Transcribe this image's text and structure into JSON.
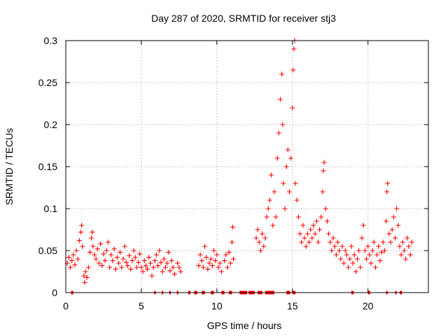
{
  "colors": {
    "series": "#ff0000",
    "grid": "#a0a0a0",
    "axis": "#000000"
  },
  "chart_data": {
    "type": "scatter",
    "title": "Day 287 of 2020, SRMTID for receiver stj3",
    "xlabel": "GPS time / hours",
    "ylabel": "SRMTID / TECUs",
    "xlim": [
      0,
      24
    ],
    "ylim": [
      0,
      0.3
    ],
    "x_ticks": [
      0,
      5,
      10,
      15,
      20
    ],
    "x_tick_labels": [
      "0",
      "5",
      "10",
      "15",
      "20"
    ],
    "y_ticks": [
      0,
      0.05,
      0.1,
      0.15,
      0.2,
      0.25,
      0.3
    ],
    "y_tick_labels": [
      "0",
      "0.05",
      "0.1",
      "0.15",
      "0.2",
      "0.25",
      "0.3"
    ],
    "grid": true,
    "marker": "+",
    "series": [
      {
        "name": "stj3",
        "points": [
          [
            0.1,
            0.035
          ],
          [
            0.2,
            0.042
          ],
          [
            0.3,
            0.03
          ],
          [
            0.4,
            0.038
          ],
          [
            0.5,
            0.045
          ],
          [
            0.6,
            0.033
          ],
          [
            0.7,
            0.05
          ],
          [
            0.8,
            0.04
          ],
          [
            0.9,
            0.062
          ],
          [
            1.0,
            0.072
          ],
          [
            1.05,
            0.08
          ],
          [
            1.1,
            0.055
          ],
          [
            1.2,
            0.02
          ],
          [
            1.25,
            0.012
          ],
          [
            1.3,
            0.025
          ],
          [
            1.4,
            0.018
          ],
          [
            1.5,
            0.03
          ],
          [
            1.6,
            0.048
          ],
          [
            1.7,
            0.065
          ],
          [
            1.75,
            0.072
          ],
          [
            1.8,
            0.055
          ],
          [
            1.9,
            0.045
          ],
          [
            2.0,
            0.04
          ],
          [
            2.1,
            0.052
          ],
          [
            2.2,
            0.035
          ],
          [
            2.3,
            0.058
          ],
          [
            2.4,
            0.032
          ],
          [
            2.5,
            0.046
          ],
          [
            2.6,
            0.038
          ],
          [
            2.7,
            0.05
          ],
          [
            2.8,
            0.06
          ],
          [
            2.9,
            0.03
          ],
          [
            3.0,
            0.045
          ],
          [
            3.1,
            0.038
          ],
          [
            3.2,
            0.052
          ],
          [
            3.3,
            0.028
          ],
          [
            3.4,
            0.042
          ],
          [
            3.5,
            0.035
          ],
          [
            3.6,
            0.048
          ],
          [
            3.7,
            0.03
          ],
          [
            3.8,
            0.04
          ],
          [
            3.9,
            0.055
          ],
          [
            4.0,
            0.036
          ],
          [
            4.1,
            0.032
          ],
          [
            4.2,
            0.044
          ],
          [
            4.3,
            0.028
          ],
          [
            4.4,
            0.038
          ],
          [
            4.5,
            0.05
          ],
          [
            4.6,
            0.042
          ],
          [
            4.7,
            0.03
          ],
          [
            4.8,
            0.036
          ],
          [
            4.9,
            0.046
          ],
          [
            5.0,
            0.03
          ],
          [
            5.1,
            0.025
          ],
          [
            5.2,
            0.038
          ],
          [
            5.3,
            0.032
          ],
          [
            5.4,
            0.028
          ],
          [
            5.5,
            0.042
          ],
          [
            5.6,
            0.035
          ],
          [
            5.7,
            0.02
          ],
          [
            5.8,
            0.03
          ],
          [
            5.9,
            0.038
          ],
          [
            6.0,
            0.045
          ],
          [
            6.1,
            0.032
          ],
          [
            6.2,
            0.05
          ],
          [
            6.3,
            0.036
          ],
          [
            6.4,
            0.025
          ],
          [
            6.5,
            0.04
          ],
          [
            6.6,
            0.03
          ],
          [
            6.7,
            0.035
          ],
          [
            6.8,
            0.048
          ],
          [
            6.9,
            0.026
          ],
          [
            7.0,
            0.038
          ],
          [
            7.1,
            0.03
          ],
          [
            7.2,
            0.022
          ],
          [
            7.4,
            0.035
          ],
          [
            7.5,
            0.03
          ],
          [
            7.6,
            0.025
          ],
          [
            8.8,
            0.032
          ],
          [
            8.9,
            0.045
          ],
          [
            9.0,
            0.038
          ],
          [
            9.1,
            0.03
          ],
          [
            9.2,
            0.055
          ],
          [
            9.3,
            0.042
          ],
          [
            9.4,
            0.028
          ],
          [
            9.5,
            0.035
          ],
          [
            9.6,
            0.04
          ],
          [
            9.7,
            0.032
          ],
          [
            9.8,
            0.05
          ],
          [
            9.9,
            0.038
          ],
          [
            10.0,
            0.045
          ],
          [
            10.1,
            0.03
          ],
          [
            10.2,
            0.035
          ],
          [
            10.3,
            0.025
          ],
          [
            10.5,
            0.038
          ],
          [
            10.6,
            0.045
          ],
          [
            10.7,
            0.03
          ],
          [
            10.8,
            0.048
          ],
          [
            10.9,
            0.035
          ],
          [
            11.0,
            0.06
          ],
          [
            11.05,
            0.078
          ],
          [
            11.1,
            0.04
          ],
          [
            12.6,
            0.065
          ],
          [
            12.7,
            0.075
          ],
          [
            12.8,
            0.06
          ],
          [
            12.9,
            0.05
          ],
          [
            13.0,
            0.07
          ],
          [
            13.1,
            0.055
          ],
          [
            13.2,
            0.065
          ],
          [
            13.3,
            0.09
          ],
          [
            13.4,
            0.1
          ],
          [
            13.5,
            0.11
          ],
          [
            13.6,
            0.14
          ],
          [
            13.7,
            0.08
          ],
          [
            13.8,
            0.12
          ],
          [
            13.9,
            0.09
          ],
          [
            14.0,
            0.16
          ],
          [
            14.1,
            0.19
          ],
          [
            14.2,
            0.23
          ],
          [
            14.3,
            0.26
          ],
          [
            14.35,
            0.2
          ],
          [
            14.4,
            0.13
          ],
          [
            14.5,
            0.1
          ],
          [
            14.6,
            0.15
          ],
          [
            14.7,
            0.17
          ],
          [
            14.8,
            0.12
          ],
          [
            14.9,
            0.16
          ],
          [
            15.0,
            0.22
          ],
          [
            15.05,
            0.265
          ],
          [
            15.1,
            0.29
          ],
          [
            15.15,
            0.3
          ],
          [
            15.2,
            0.13
          ],
          [
            15.3,
            0.11
          ],
          [
            15.4,
            0.09
          ],
          [
            15.5,
            0.07
          ],
          [
            15.6,
            0.06
          ],
          [
            15.7,
            0.08
          ],
          [
            15.8,
            0.065
          ],
          [
            15.9,
            0.055
          ],
          [
            16.0,
            0.07
          ],
          [
            16.1,
            0.06
          ],
          [
            16.2,
            0.075
          ],
          [
            16.3,
            0.065
          ],
          [
            16.4,
            0.08
          ],
          [
            16.5,
            0.07
          ],
          [
            16.6,
            0.085
          ],
          [
            16.7,
            0.06
          ],
          [
            16.8,
            0.075
          ],
          [
            16.9,
            0.09
          ],
          [
            17.0,
            0.12
          ],
          [
            17.05,
            0.145
          ],
          [
            17.1,
            0.155
          ],
          [
            17.2,
            0.1
          ],
          [
            17.3,
            0.085
          ],
          [
            17.4,
            0.07
          ],
          [
            17.5,
            0.06
          ],
          [
            17.6,
            0.05
          ],
          [
            17.7,
            0.065
          ],
          [
            17.8,
            0.055
          ],
          [
            17.9,
            0.045
          ],
          [
            18.0,
            0.06
          ],
          [
            18.1,
            0.05
          ],
          [
            18.2,
            0.04
          ],
          [
            18.3,
            0.055
          ],
          [
            18.4,
            0.035
          ],
          [
            18.5,
            0.05
          ],
          [
            18.6,
            0.045
          ],
          [
            18.7,
            0.03
          ],
          [
            18.8,
            0.04
          ],
          [
            18.9,
            0.055
          ],
          [
            19.0,
            0.035
          ],
          [
            19.1,
            0.045
          ],
          [
            19.2,
            0.025
          ],
          [
            19.3,
            0.04
          ],
          [
            19.4,
            0.05
          ],
          [
            19.5,
            0.03
          ],
          [
            19.6,
            0.065
          ],
          [
            19.7,
            0.08
          ],
          [
            19.8,
            0.05
          ],
          [
            19.9,
            0.04
          ],
          [
            20.0,
            0.055
          ],
          [
            20.1,
            0.045
          ],
          [
            20.2,
            0.035
          ],
          [
            20.3,
            0.05
          ],
          [
            20.4,
            0.06
          ],
          [
            20.5,
            0.03
          ],
          [
            20.6,
            0.045
          ],
          [
            20.7,
            0.055
          ],
          [
            20.8,
            0.038
          ],
          [
            20.9,
            0.048
          ],
          [
            21.0,
            0.06
          ],
          [
            21.1,
            0.05
          ],
          [
            21.2,
            0.085
          ],
          [
            21.25,
            0.12
          ],
          [
            21.3,
            0.13
          ],
          [
            21.4,
            0.07
          ],
          [
            21.5,
            0.06
          ],
          [
            21.6,
            0.075
          ],
          [
            21.7,
            0.09
          ],
          [
            21.8,
            0.065
          ],
          [
            21.9,
            0.1
          ],
          [
            22.0,
            0.08
          ],
          [
            22.1,
            0.055
          ],
          [
            22.2,
            0.045
          ],
          [
            22.3,
            0.06
          ],
          [
            22.4,
            0.05
          ],
          [
            22.5,
            0.04
          ],
          [
            22.6,
            0.065
          ],
          [
            22.7,
            0.055
          ],
          [
            22.8,
            0.045
          ],
          [
            22.9,
            0.06
          ]
        ]
      }
    ],
    "zero_segments": [
      [
        0.35,
        0.5
      ],
      [
        5.85,
        5.95
      ],
      [
        6.35,
        6.45
      ],
      [
        6.85,
        6.95
      ],
      [
        7.35,
        7.45
      ],
      [
        8.1,
        8.25
      ],
      [
        8.5,
        8.7
      ],
      [
        9.0,
        9.2
      ],
      [
        9.6,
        9.8
      ],
      [
        10.3,
        10.5
      ],
      [
        10.8,
        11.0
      ],
      [
        11.5,
        12.0
      ],
      [
        12.1,
        12.5
      ],
      [
        12.7,
        13.0
      ],
      [
        13.2,
        13.8
      ],
      [
        14.6,
        14.85
      ],
      [
        15.0,
        15.2
      ],
      [
        18.9,
        19.05
      ],
      [
        20.0,
        20.15
      ],
      [
        21.2,
        21.3
      ],
      [
        21.8,
        21.9
      ],
      [
        22.1,
        22.25
      ]
    ]
  }
}
